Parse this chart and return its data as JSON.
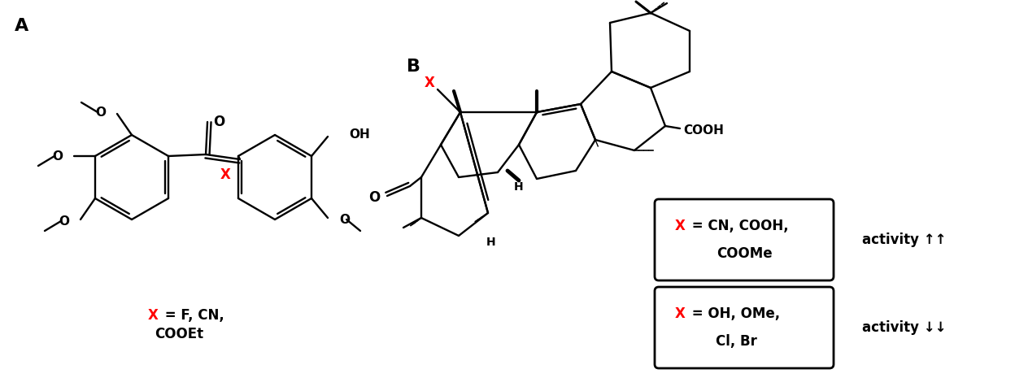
{
  "bg": "#ffffff",
  "panel_A_label": "A",
  "panel_B_label": "B",
  "xA_label_line1": "X = F, CN,",
  "xA_label_line2": "COOEt",
  "box1_line1": "X = CN, COOH,",
  "box1_line2": "    COOMe",
  "box2_line1": "X = OH, OMe,",
  "box2_line2": "    Cl, Br",
  "act1": "activity ↑↑",
  "act2": "activity ↓↓"
}
